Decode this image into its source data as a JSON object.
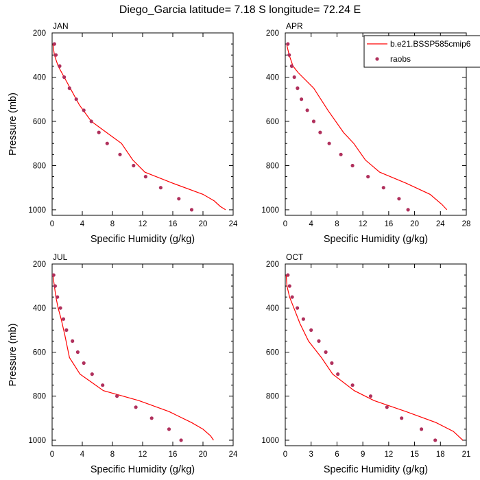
{
  "title": "Diego_Garcia  latitude= 7.18 S longitude= 72.24 E",
  "colors": {
    "model": "#ff0000",
    "obs": "#b0305c",
    "axis": "#000000"
  },
  "legend": {
    "model_label": "b.e21.BSSP585cmip6",
    "obs_label": "raobs",
    "placement": "top-right of APR panel"
  },
  "chart_data": [
    {
      "type": "line",
      "panel": "JAN",
      "xlabel": "Specific Humidity (g/kg)",
      "ylabel": "Pressure (mb)",
      "xlim": [
        0,
        24
      ],
      "ylim": [
        200,
        1025
      ],
      "y_inverted": true,
      "xticks": [
        0,
        4,
        8,
        12,
        16,
        20,
        24
      ],
      "yticks": [
        200,
        400,
        600,
        800,
        1000
      ],
      "series": [
        {
          "name": "b.e21.BSSP585cmip6",
          "style": "line",
          "points": [
            [
              0.1,
              250
            ],
            [
              0.3,
              300
            ],
            [
              0.8,
              350
            ],
            [
              1.6,
              400
            ],
            [
              2.4,
              450
            ],
            [
              3.6,
              525
            ],
            [
              5.2,
              600
            ],
            [
              7.2,
              650
            ],
            [
              9.2,
              700
            ],
            [
              10.7,
              775
            ],
            [
              12.3,
              830
            ],
            [
              16,
              880
            ],
            [
              20,
              930
            ],
            [
              21.5,
              960
            ],
            [
              22.3,
              985
            ],
            [
              23,
              1000
            ]
          ]
        },
        {
          "name": "raobs",
          "style": "markers",
          "points": [
            [
              0.3,
              250
            ],
            [
              0.5,
              300
            ],
            [
              1,
              350
            ],
            [
              1.6,
              400
            ],
            [
              2.3,
              450
            ],
            [
              3.2,
              500
            ],
            [
              4.2,
              550
            ],
            [
              5.2,
              600
            ],
            [
              6.2,
              650
            ],
            [
              7.3,
              700
            ],
            [
              9,
              750
            ],
            [
              10.8,
              800
            ],
            [
              12.4,
              850
            ],
            [
              14.4,
              900
            ],
            [
              16.8,
              950
            ],
            [
              18.5,
              1000
            ]
          ]
        }
      ]
    },
    {
      "type": "line",
      "panel": "APR",
      "xlabel": "Specific Humidity (g/kg)",
      "ylabel": "",
      "xlim": [
        0,
        28
      ],
      "ylim": [
        200,
        1025
      ],
      "y_inverted": true,
      "xticks": [
        0,
        4,
        8,
        12,
        16,
        20,
        24,
        28
      ],
      "yticks": [
        200,
        400,
        600,
        800,
        1000
      ],
      "series": [
        {
          "name": "b.e21.BSSP585cmip6",
          "style": "line",
          "points": [
            [
              0.2,
              250
            ],
            [
              0.6,
              300
            ],
            [
              1.2,
              350
            ],
            [
              2,
              380
            ],
            [
              4.4,
              450
            ],
            [
              6.6,
              550
            ],
            [
              9,
              650
            ],
            [
              10.6,
              700
            ],
            [
              12.4,
              775
            ],
            [
              14.6,
              830
            ],
            [
              18.7,
              880
            ],
            [
              22.4,
              930
            ],
            [
              24.2,
              975
            ],
            [
              25,
              1000
            ]
          ]
        },
        {
          "name": "raobs",
          "style": "markers",
          "points": [
            [
              0.4,
              250
            ],
            [
              0.6,
              300
            ],
            [
              1,
              350
            ],
            [
              1.4,
              400
            ],
            [
              1.9,
              450
            ],
            [
              2.5,
              500
            ],
            [
              3.4,
              550
            ],
            [
              4.4,
              600
            ],
            [
              5.4,
              650
            ],
            [
              6.8,
              700
            ],
            [
              8.6,
              750
            ],
            [
              10.4,
              800
            ],
            [
              12.8,
              850
            ],
            [
              15.2,
              900
            ],
            [
              17.6,
              950
            ],
            [
              19,
              1000
            ]
          ]
        }
      ]
    },
    {
      "type": "line",
      "panel": "JUL",
      "xlabel": "Specific Humidity (g/kg)",
      "ylabel": "Pressure (mb)",
      "xlim": [
        0,
        24
      ],
      "ylim": [
        200,
        1025
      ],
      "y_inverted": true,
      "xticks": [
        0,
        4,
        8,
        12,
        16,
        20,
        24
      ],
      "yticks": [
        200,
        400,
        600,
        800,
        1000
      ],
      "series": [
        {
          "name": "b.e21.BSSP585cmip6",
          "style": "line",
          "points": [
            [
              0.1,
              250
            ],
            [
              0.3,
              300
            ],
            [
              0.5,
              350
            ],
            [
              0.8,
              400
            ],
            [
              1.2,
              450
            ],
            [
              1.7,
              525
            ],
            [
              2.3,
              625
            ],
            [
              3.7,
              700
            ],
            [
              6.8,
              775
            ],
            [
              11.5,
              820
            ],
            [
              15.5,
              870
            ],
            [
              18.5,
              920
            ],
            [
              20,
              950
            ],
            [
              21,
              980
            ],
            [
              21.4,
              1000
            ]
          ]
        },
        {
          "name": "raobs",
          "style": "markers",
          "points": [
            [
              0.2,
              250
            ],
            [
              0.4,
              300
            ],
            [
              0.7,
              350
            ],
            [
              1.1,
              400
            ],
            [
              1.5,
              450
            ],
            [
              1.9,
              500
            ],
            [
              2.7,
              550
            ],
            [
              3.4,
              600
            ],
            [
              4.2,
              650
            ],
            [
              5.3,
              700
            ],
            [
              6.7,
              750
            ],
            [
              8.6,
              800
            ],
            [
              11.1,
              850
            ],
            [
              13.2,
              900
            ],
            [
              15.5,
              950
            ],
            [
              17.1,
              1000
            ]
          ]
        }
      ]
    },
    {
      "type": "line",
      "panel": "OCT",
      "xlabel": "Specific Humidity (g/kg)",
      "ylabel": "",
      "xlim": [
        0,
        21
      ],
      "ylim": [
        200,
        1025
      ],
      "y_inverted": true,
      "xticks": [
        0,
        3,
        6,
        9,
        12,
        15,
        18,
        21
      ],
      "yticks": [
        200,
        400,
        600,
        800,
        1000
      ],
      "series": [
        {
          "name": "b.e21.BSSP585cmip6",
          "style": "line",
          "points": [
            [
              0.1,
              250
            ],
            [
              0.2,
              300
            ],
            [
              0.5,
              350
            ],
            [
              1,
              400
            ],
            [
              1.7,
              470
            ],
            [
              2.7,
              550
            ],
            [
              4.2,
              625
            ],
            [
              5.5,
              700
            ],
            [
              8,
              775
            ],
            [
              10.3,
              820
            ],
            [
              14,
              870
            ],
            [
              17.5,
              920
            ],
            [
              19.5,
              960
            ],
            [
              20.6,
              1000
            ]
          ]
        },
        {
          "name": "raobs",
          "style": "markers",
          "points": [
            [
              0.3,
              250
            ],
            [
              0.5,
              300
            ],
            [
              0.8,
              350
            ],
            [
              1.4,
              400
            ],
            [
              2.1,
              450
            ],
            [
              3,
              500
            ],
            [
              3.9,
              550
            ],
            [
              4.7,
              600
            ],
            [
              5.4,
              650
            ],
            [
              6.1,
              700
            ],
            [
              7.8,
              750
            ],
            [
              9.9,
              800
            ],
            [
              11.8,
              850
            ],
            [
              13.5,
              900
            ],
            [
              15.8,
              950
            ],
            [
              17.4,
              1000
            ]
          ]
        }
      ]
    }
  ]
}
